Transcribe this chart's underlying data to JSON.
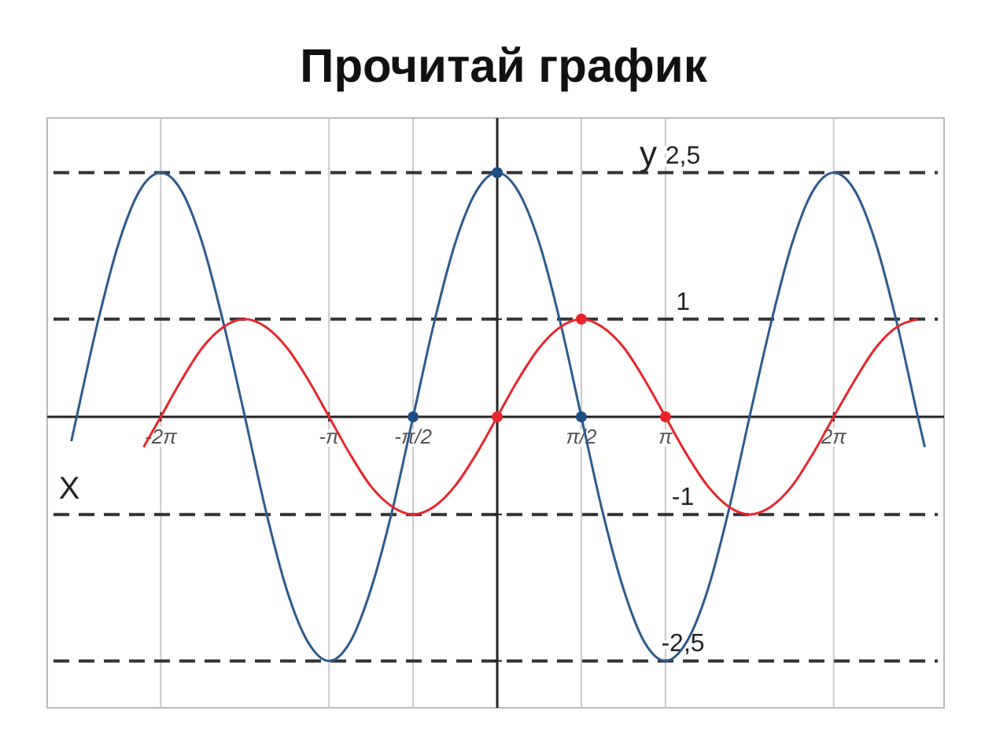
{
  "chart_data": {
    "type": "line",
    "title": "Прочитай график",
    "xlabel": "X",
    "ylabel": "y",
    "xlim": [
      -8.4,
      8.34
    ],
    "ylim": [
      -2.98,
      3.06
    ],
    "xticks": [
      {
        "value": -6.28,
        "label": "-2π"
      },
      {
        "value": -3.14,
        "label": "-π"
      },
      {
        "value": -1.57,
        "label": "-π/2"
      },
      {
        "value": 1.57,
        "label": "π/2"
      },
      {
        "value": 3.14,
        "label": "π"
      },
      {
        "value": 6.28,
        "label": "2π"
      }
    ],
    "yticks": [
      {
        "value": 2.5,
        "label": "2,5"
      },
      1,
      -1,
      {
        "value": -2.5,
        "label": "-2,5"
      }
    ],
    "grid": "x",
    "ref_lines": [
      {
        "axis": "y",
        "value": 2.5,
        "color": "#333333",
        "line_style": "dashed"
      },
      {
        "axis": "y",
        "value": 1,
        "color": "#333333",
        "line_style": "dashed"
      },
      {
        "axis": "y",
        "value": -1,
        "color": "#333333",
        "line_style": "dashed"
      },
      {
        "axis": "y",
        "value": -2.5,
        "color": "#333333",
        "line_style": "dashed"
      }
    ],
    "series": [
      {
        "color": "#2c5a8c",
        "x": [
          -7.95,
          -7.85,
          -7.46,
          -7.07,
          -6.68,
          -6.28,
          -5.89,
          -5.5,
          -5.11,
          -4.71,
          -4.32,
          -3.93,
          -3.53,
          -3.14,
          -2.75,
          -2.36,
          -1.96,
          -1.57,
          -1.18,
          -0.79,
          -0.39,
          0,
          0.39,
          0.79,
          1.18,
          1.57,
          1.96,
          2.36,
          2.75,
          3.14,
          3.53,
          3.93,
          4.32,
          4.71,
          5.11,
          5.5,
          5.89,
          6.28,
          6.68,
          7.07,
          7.46,
          7.85,
          7.98
        ],
        "values": [
          -0.25,
          0,
          0.96,
          1.77,
          2.31,
          2.5,
          2.31,
          1.77,
          0.96,
          0,
          -0.96,
          -1.77,
          -2.31,
          -2.5,
          -2.31,
          -1.77,
          -0.96,
          0,
          0.96,
          1.77,
          2.31,
          2.5,
          2.31,
          1.77,
          0.96,
          0,
          -0.96,
          -1.77,
          -2.31,
          -2.5,
          -2.31,
          -1.77,
          -0.96,
          0,
          0.96,
          1.77,
          2.31,
          2.5,
          2.31,
          1.77,
          0.96,
          0,
          -0.31
        ]
      },
      {
        "color": "#e8262a",
        "x": [
          -6.6,
          -6.28,
          -5.89,
          -5.5,
          -5.11,
          -4.71,
          -4.32,
          -3.93,
          -3.53,
          -3.14,
          -2.75,
          -2.36,
          -1.96,
          -1.57,
          -1.18,
          -0.79,
          -0.39,
          0,
          0.39,
          0.79,
          1.18,
          1.57,
          1.96,
          2.36,
          2.75,
          3.14,
          3.53,
          3.93,
          4.32,
          4.71,
          5.11,
          5.5,
          5.89,
          6.28,
          6.68,
          7.07,
          7.46,
          7.85
        ],
        "values": [
          -0.31,
          0,
          0.38,
          0.71,
          0.92,
          1,
          0.92,
          0.71,
          0.38,
          0,
          -0.38,
          -0.71,
          -0.92,
          -1,
          -0.92,
          -0.71,
          -0.38,
          0,
          0.38,
          0.71,
          0.92,
          1,
          0.92,
          0.71,
          0.38,
          0,
          -0.38,
          -0.71,
          -0.92,
          -1,
          -0.92,
          -0.71,
          -0.38,
          0,
          0.38,
          0.71,
          0.92,
          1
        ]
      },
      {
        "type": "scatter",
        "color": "#1f4e85",
        "x": [
          -1.57,
          0,
          1.57
        ],
        "values": [
          0,
          2.5,
          0
        ]
      },
      {
        "type": "scatter",
        "color": "#e8262a",
        "x": [
          0,
          1.57,
          3.14
        ],
        "values": [
          0,
          1,
          0
        ]
      }
    ]
  }
}
